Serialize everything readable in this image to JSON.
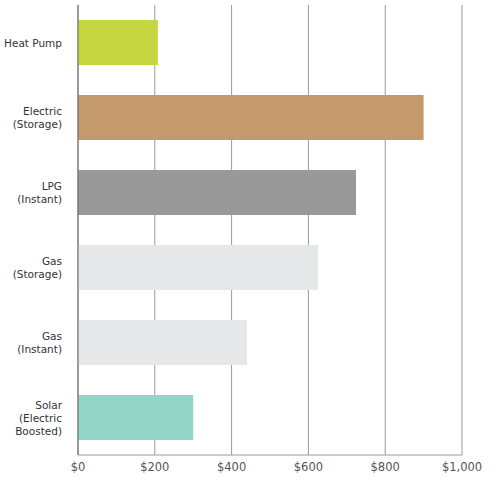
{
  "chart_data": {
    "type": "bar",
    "orientation": "horizontal",
    "categories": [
      "Heat Pump",
      "Electric\n(Storage)",
      "LPG\n(Instant)",
      "Gas\n(Storage)",
      "Gas\n(Instant)",
      "Solar\n(Electric\nBoosted)"
    ],
    "values": [
      208,
      900,
      724,
      625,
      440,
      300
    ],
    "colors": [
      "#c5d640",
      "#c49a6c",
      "#999999",
      "#e6e7e8",
      "#e6e7e8",
      "#93d5c7"
    ],
    "xlim": [
      0,
      1000
    ],
    "xticks": [
      {
        "value": 0,
        "label": "$0"
      },
      {
        "value": 200,
        "label": "$200"
      },
      {
        "value": 400,
        "label": "$400"
      },
      {
        "value": 600,
        "label": "$600"
      },
      {
        "value": 800,
        "label": "$800"
      },
      {
        "value": 1000,
        "label": "$1,000"
      }
    ],
    "grid": true
  }
}
